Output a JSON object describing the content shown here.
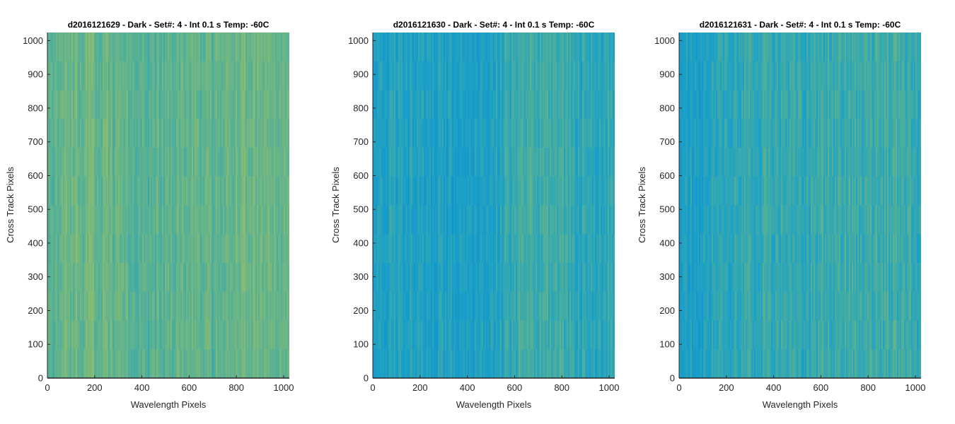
{
  "chart_data": [
    {
      "type": "heatmap",
      "title": "d2016121629 - Dark - Set#: 4 - Int 0.1 s Temp: -60C",
      "xlabel": "Wavelength Pixels",
      "ylabel": "Cross Track Pixels",
      "xlim": [
        0,
        1024
      ],
      "ylim": [
        0,
        1024
      ],
      "xticks": [
        0,
        200,
        400,
        600,
        800,
        1000
      ],
      "yticks": [
        0,
        100,
        200,
        300,
        400,
        500,
        600,
        700,
        800,
        900,
        1000
      ],
      "colormap": [
        "#0d8fcf",
        "#1aa0c8",
        "#4aae9e",
        "#7cb97a",
        "#a7c05d"
      ],
      "level": 0.62,
      "band_profile": [
        {
          "x": 0,
          "v": 0.58
        },
        {
          "x": 120,
          "v": 0.7
        },
        {
          "x": 300,
          "v": 0.6
        },
        {
          "x": 430,
          "v": 0.55
        },
        {
          "x": 560,
          "v": 0.66
        },
        {
          "x": 700,
          "v": 0.6
        },
        {
          "x": 820,
          "v": 0.68
        },
        {
          "x": 1024,
          "v": 0.62
        }
      ]
    },
    {
      "type": "heatmap",
      "title": "d2016121630 - Dark - Set#: 4 - Int 0.1 s Temp: -60C",
      "xlabel": "Wavelength Pixels",
      "ylabel": "Cross Track Pixels",
      "xlim": [
        0,
        1024
      ],
      "ylim": [
        0,
        1024
      ],
      "xticks": [
        0,
        200,
        400,
        600,
        800,
        1000
      ],
      "yticks": [
        0,
        100,
        200,
        300,
        400,
        500,
        600,
        700,
        800,
        900,
        1000
      ],
      "colormap": [
        "#0d8fcf",
        "#1aa0c8",
        "#4aae9e",
        "#7cb97a",
        "#a7c05d"
      ],
      "level": 0.32,
      "band_profile": [
        {
          "x": 0,
          "v": 0.3
        },
        {
          "x": 150,
          "v": 0.28
        },
        {
          "x": 400,
          "v": 0.22
        },
        {
          "x": 520,
          "v": 0.3
        },
        {
          "x": 620,
          "v": 0.44
        },
        {
          "x": 760,
          "v": 0.46
        },
        {
          "x": 900,
          "v": 0.34
        },
        {
          "x": 1024,
          "v": 0.38
        }
      ]
    },
    {
      "type": "heatmap",
      "title": "d2016121631 - Dark - Set#: 4 - Int 0.1 s Temp: -60C",
      "xlabel": "Wavelength Pixels",
      "ylabel": "Cross Track Pixels",
      "xlim": [
        0,
        1024
      ],
      "ylim": [
        0,
        1024
      ],
      "xticks": [
        0,
        200,
        400,
        600,
        800,
        1000
      ],
      "yticks": [
        0,
        100,
        200,
        300,
        400,
        500,
        600,
        700,
        800,
        900,
        1000
      ],
      "colormap": [
        "#0d8fcf",
        "#1aa0c8",
        "#4aae9e",
        "#7cb97a",
        "#a7c05d"
      ],
      "level": 0.38,
      "band_profile": [
        {
          "x": 0,
          "v": 0.22
        },
        {
          "x": 120,
          "v": 0.3
        },
        {
          "x": 300,
          "v": 0.4
        },
        {
          "x": 500,
          "v": 0.38
        },
        {
          "x": 700,
          "v": 0.44
        },
        {
          "x": 850,
          "v": 0.46
        },
        {
          "x": 1024,
          "v": 0.4
        }
      ]
    }
  ]
}
